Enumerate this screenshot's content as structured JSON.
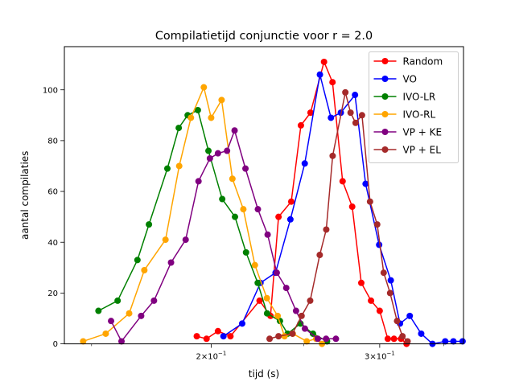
{
  "chart_data": {
    "type": "line",
    "title": "Compilatietijd conjunctie voor r = 2.0",
    "xlabel": "tijd (s)",
    "ylabel": "aantal compilaties",
    "x_scale": "log",
    "xlim": [
      0.1405,
      0.367
    ],
    "ylim": [
      0,
      117
    ],
    "x_ticks": [
      {
        "value": 0.2,
        "base": "2×10",
        "exp": "−1"
      },
      {
        "value": 0.3,
        "base": "3×10",
        "exp": "−1"
      }
    ],
    "y_ticks": [
      0,
      20,
      40,
      60,
      80,
      100
    ],
    "grid": false,
    "legend_position": "top-right",
    "series": [
      {
        "name": "Random",
        "color": "#ff0000",
        "points": [
          [
            0.1932,
            3
          ],
          [
            0.1978,
            2
          ],
          [
            0.2033,
            5
          ],
          [
            0.2095,
            3
          ],
          [
            0.2247,
            17
          ],
          [
            0.2307,
            11
          ],
          [
            0.2352,
            50
          ],
          [
            0.2425,
            56
          ],
          [
            0.2482,
            86
          ],
          [
            0.254,
            91
          ],
          [
            0.2624,
            111
          ],
          [
            0.2678,
            103
          ],
          [
            0.2744,
            64
          ],
          [
            0.2808,
            54
          ],
          [
            0.287,
            24
          ],
          [
            0.2938,
            17
          ],
          [
            0.3,
            13
          ],
          [
            0.3059,
            2
          ],
          [
            0.3105,
            2
          ],
          [
            0.3158,
            2
          ],
          [
            0.32,
            0
          ]
        ]
      },
      {
        "name": "VO",
        "color": "#0000ff",
        "points": [
          [
            0.206,
            3
          ],
          [
            0.2155,
            8
          ],
          [
            0.2252,
            24
          ],
          [
            0.2335,
            28
          ],
          [
            0.242,
            49
          ],
          [
            0.2505,
            71
          ],
          [
            0.2598,
            106
          ],
          [
            0.2668,
            89
          ],
          [
            0.2732,
            91
          ],
          [
            0.2827,
            98
          ],
          [
            0.29,
            63
          ],
          [
            0.2996,
            39
          ],
          [
            0.3081,
            25
          ],
          [
            0.315,
            8
          ],
          [
            0.3225,
            11
          ],
          [
            0.3315,
            4
          ],
          [
            0.3406,
            0
          ],
          [
            0.3512,
            1
          ],
          [
            0.3582,
            1
          ],
          [
            0.3662,
            1
          ]
        ]
      },
      {
        "name": "IVO-LR",
        "color": "#008000",
        "points": [
          [
            0.1525,
            13
          ],
          [
            0.1597,
            17
          ],
          [
            0.1675,
            33
          ],
          [
            0.1722,
            47
          ],
          [
            0.18,
            69
          ],
          [
            0.185,
            85
          ],
          [
            0.189,
            90
          ],
          [
            0.1937,
            92
          ],
          [
            0.1987,
            76
          ],
          [
            0.2054,
            57
          ],
          [
            0.2118,
            50
          ],
          [
            0.2175,
            36
          ],
          [
            0.2237,
            24
          ],
          [
            0.2288,
            12
          ],
          [
            0.236,
            9
          ],
          [
            0.2404,
            4
          ],
          [
            0.2479,
            8
          ],
          [
            0.2555,
            4
          ],
          [
            0.2643,
            1
          ]
        ]
      },
      {
        "name": "IVO-RL",
        "color": "#ffa500",
        "points": [
          [
            0.147,
            1
          ],
          [
            0.1552,
            4
          ],
          [
            0.1642,
            12
          ],
          [
            0.1703,
            29
          ],
          [
            0.1792,
            41
          ],
          [
            0.1852,
            70
          ],
          [
            0.1905,
            89
          ],
          [
            0.1965,
            101
          ],
          [
            0.2,
            89
          ],
          [
            0.2051,
            96
          ],
          [
            0.2105,
            65
          ],
          [
            0.2161,
            53
          ],
          [
            0.2222,
            31
          ],
          [
            0.2287,
            18
          ],
          [
            0.2347,
            11
          ],
          [
            0.2386,
            3
          ],
          [
            0.2434,
            4
          ],
          [
            0.2517,
            1
          ],
          [
            0.2575,
            2
          ],
          [
            0.2611,
            0
          ]
        ]
      },
      {
        "name": "VP + KE",
        "color": "#800080",
        "points": [
          [
            0.1572,
            9
          ],
          [
            0.1612,
            1
          ],
          [
            0.169,
            11
          ],
          [
            0.1743,
            17
          ],
          [
            0.1816,
            32
          ],
          [
            0.1881,
            41
          ],
          [
            0.194,
            64
          ],
          [
            0.1994,
            73
          ],
          [
            0.2033,
            75
          ],
          [
            0.2078,
            76
          ],
          [
            0.2116,
            84
          ],
          [
            0.2172,
            69
          ],
          [
            0.2238,
            53
          ],
          [
            0.2291,
            43
          ],
          [
            0.2342,
            28
          ],
          [
            0.2396,
            22
          ],
          [
            0.2453,
            13
          ],
          [
            0.2506,
            6
          ],
          [
            0.2585,
            2
          ],
          [
            0.2637,
            2
          ],
          [
            0.27,
            2
          ]
        ]
      },
      {
        "name": "VP + EL",
        "color": "#a52a2a",
        "points": [
          [
            0.2302,
            2
          ],
          [
            0.2352,
            3
          ],
          [
            0.2432,
            4
          ],
          [
            0.2486,
            11
          ],
          [
            0.2538,
            17
          ],
          [
            0.2597,
            35
          ],
          [
            0.2638,
            45
          ],
          [
            0.2679,
            74
          ],
          [
            0.2762,
            99
          ],
          [
            0.2797,
            91
          ],
          [
            0.2831,
            87
          ],
          [
            0.2875,
            90
          ],
          [
            0.2931,
            56
          ],
          [
            0.2982,
            47
          ],
          [
            0.3029,
            28
          ],
          [
            0.3076,
            20
          ],
          [
            0.3128,
            9
          ],
          [
            0.3169,
            3
          ],
          [
            0.3208,
            1
          ]
        ]
      }
    ]
  }
}
